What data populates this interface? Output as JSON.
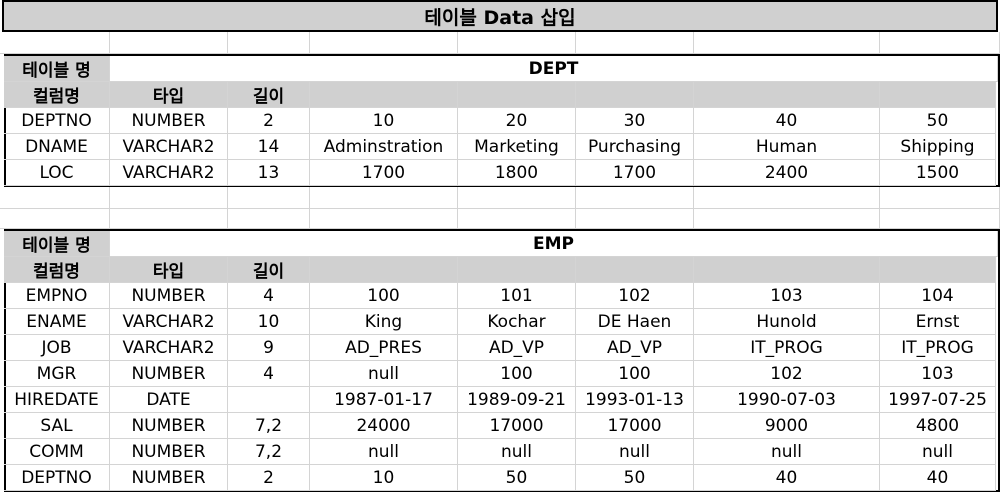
{
  "title": "테이블 Data 삽입",
  "labels": {
    "table_name": "테이블 명",
    "column_name": "컬럼명",
    "type": "타입",
    "length": "길이"
  },
  "dept": {
    "name": "DEPT",
    "rows": [
      [
        "DEPTNO",
        "NUMBER",
        "2",
        "10",
        "20",
        "30",
        "40",
        "50"
      ],
      [
        "DNAME",
        "VARCHAR2",
        "14",
        "Adminstration",
        "Marketing",
        "Purchasing",
        "Human",
        "Shipping"
      ],
      [
        "LOC",
        "VARCHAR2",
        "13",
        "1700",
        "1800",
        "1700",
        "2400",
        "1500"
      ]
    ]
  },
  "emp": {
    "name": "EMP",
    "rows": [
      [
        "EMPNO",
        "NUMBER",
        "4",
        "100",
        "101",
        "102",
        "103",
        "104"
      ],
      [
        "ENAME",
        "VARCHAR2",
        "10",
        "King",
        "Kochar",
        "DE Haen",
        "Hunold",
        "Ernst"
      ],
      [
        "JOB",
        "VARCHAR2",
        "9",
        "AD_PRES",
        "AD_VP",
        "AD_VP",
        "IT_PROG",
        "IT_PROG"
      ],
      [
        "MGR",
        "NUMBER",
        "4",
        "null",
        "100",
        "100",
        "102",
        "103"
      ],
      [
        "HIREDATE",
        "DATE",
        "",
        "1987-01-17",
        "1989-09-21",
        "1993-01-13",
        "1990-07-03",
        "1997-07-25"
      ],
      [
        "SAL",
        "NUMBER",
        "7,2",
        "24000",
        "17000",
        "17000",
        "9000",
        "4800"
      ],
      [
        "COMM",
        "NUMBER",
        "7,2",
        "null",
        "null",
        "null",
        "null",
        "null"
      ],
      [
        "DEPTNO",
        "NUMBER",
        "2",
        "10",
        "50",
        "50",
        "40",
        "40"
      ]
    ]
  }
}
